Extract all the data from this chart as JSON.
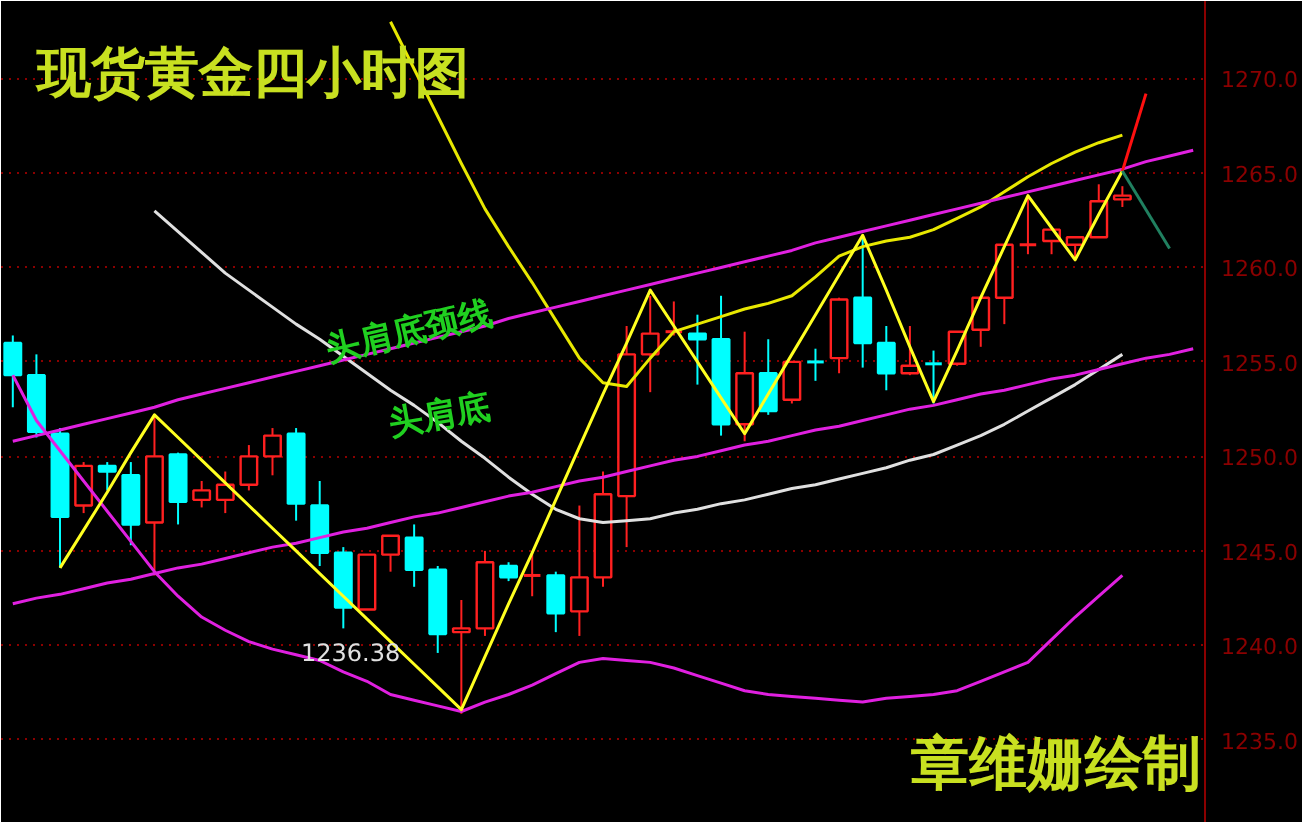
{
  "chart_data": {
    "type": "candlestick",
    "title": "现货黄金四小时图",
    "categories": [
      null,
      null,
      null,
      null,
      null,
      null,
      null,
      null,
      null,
      null,
      null,
      null,
      null,
      null,
      null,
      null,
      null,
      null,
      null,
      null,
      null,
      null,
      null,
      null,
      null,
      null,
      null,
      null,
      null,
      null,
      null,
      null,
      null,
      null,
      null,
      null,
      null,
      null,
      null,
      null,
      null,
      null,
      null,
      null,
      null,
      null,
      null,
      null,
      null,
      null,
      null
    ],
    "ohlc": [
      [
        1256.0,
        1256.4,
        1252.6,
        1254.3
      ],
      [
        1254.3,
        1255.4,
        1251.0,
        1251.3
      ],
      [
        1251.2,
        1251.5,
        1244.1,
        1246.8
      ],
      [
        1247.4,
        1249.7,
        1247.0,
        1249.5
      ],
      [
        1249.5,
        1249.7,
        1248.2,
        1249.2
      ],
      [
        1249.0,
        1249.7,
        1245.3,
        1246.4
      ],
      [
        1246.5,
        1252.2,
        1243.7,
        1250.0
      ],
      [
        1250.1,
        1250.2,
        1246.4,
        1247.6
      ],
      [
        1247.7,
        1248.7,
        1247.3,
        1248.2
      ],
      [
        1247.7,
        1249.2,
        1247.0,
        1248.5
      ],
      [
        1248.5,
        1250.6,
        1248.2,
        1250.0
      ],
      [
        1250.0,
        1251.5,
        1249.0,
        1251.1
      ],
      [
        1251.2,
        1251.5,
        1246.6,
        1247.5
      ],
      [
        1247.4,
        1248.7,
        1244.2,
        1244.9
      ],
      [
        1244.9,
        1245.2,
        1240.9,
        1242.0
      ],
      [
        1241.9,
        1244.8,
        1241.9,
        1244.8
      ],
      [
        1244.8,
        1245.8,
        1243.9,
        1245.8
      ],
      [
        1245.7,
        1246.4,
        1243.1,
        1244.0
      ],
      [
        1244.0,
        1244.2,
        1239.6,
        1240.6
      ],
      [
        1240.7,
        1242.4,
        1236.38,
        1240.9
      ],
      [
        1240.9,
        1245.0,
        1240.5,
        1244.4
      ],
      [
        1244.2,
        1244.4,
        1243.4,
        1243.6
      ],
      [
        1243.7,
        1244.9,
        1242.6,
        1243.8
      ],
      [
        1243.7,
        1243.9,
        1240.7,
        1241.7
      ],
      [
        1241.8,
        1247.4,
        1240.5,
        1243.6
      ],
      [
        1243.6,
        1249.2,
        1243.1,
        1248.0
      ],
      [
        1247.9,
        1256.9,
        1245.2,
        1255.4
      ],
      [
        1255.4,
        1258.5,
        1253.4,
        1256.5
      ],
      [
        1256.6,
        1258.2,
        1256.4,
        1256.7
      ],
      [
        1256.5,
        1257.5,
        1253.8,
        1256.2
      ],
      [
        1256.2,
        1258.5,
        1251.1,
        1251.7
      ],
      [
        1251.7,
        1256.6,
        1250.8,
        1254.4
      ],
      [
        1254.4,
        1256.2,
        1252.2,
        1252.4
      ],
      [
        1253.0,
        1255.0,
        1252.8,
        1255.0
      ],
      [
        1255.0,
        1255.7,
        1254.0,
        1254.9
      ],
      [
        1255.2,
        1258.4,
        1254.4,
        1258.3
      ],
      [
        1258.4,
        1261.7,
        1254.7,
        1256.0
      ],
      [
        1256.0,
        1256.9,
        1253.5,
        1254.4
      ],
      [
        1254.4,
        1256.9,
        1254.3,
        1254.8
      ],
      [
        1254.9,
        1255.6,
        1252.8,
        1254.8
      ],
      [
        1254.9,
        1256.6,
        1254.8,
        1256.6
      ],
      [
        1256.7,
        1258.4,
        1255.8,
        1258.4
      ],
      [
        1258.4,
        1261.2,
        1257.0,
        1261.2
      ],
      [
        1261.2,
        1263.8,
        1260.7,
        1261.3
      ],
      [
        1261.4,
        1262.0,
        1260.7,
        1262.0
      ],
      [
        1261.2,
        1261.6,
        1260.4,
        1261.6
      ],
      [
        1261.6,
        1264.4,
        1261.6,
        1263.5
      ],
      [
        1263.6,
        1264.3,
        1263.2,
        1263.8
      ],
      null,
      null,
      null
    ],
    "colors": [
      "#00ffff",
      "#00ffff",
      "#00ffff",
      "#ff2020",
      "#00ffff",
      "#00ffff",
      "#ff2020",
      "#00ffff",
      "#ff2020",
      "#ff2020",
      "#ff2020",
      "#ff2020",
      "#00ffff",
      "#00ffff",
      "#00ffff",
      "#ff2020",
      "#ff2020",
      "#00ffff",
      "#00ffff",
      "#ff2020",
      "#ff2020",
      "#00ffff",
      "#ff2020",
      "#00ffff",
      "#ff2020",
      "#ff2020",
      "#ff2020",
      "#ff2020",
      "#ff2020",
      "#00ffff",
      "#00ffff",
      "#ff2020",
      "#00ffff",
      "#ff2020",
      "#00ffff",
      "#ff2020",
      "#00ffff",
      "#00ffff",
      "#ff2020",
      "#00ffff",
      "#ff2020",
      "#ff2020",
      "#ff2020",
      "#ff2020",
      "#ff2020",
      "#ff2020",
      "#ff2020",
      "#ff2020",
      null,
      null,
      null
    ],
    "series": [
      {
        "type": "line",
        "color": "#e8e800",
        "values": [
          null,
          null,
          null,
          null,
          null,
          null,
          null,
          null,
          null,
          null,
          null,
          null,
          null,
          null,
          null,
          null,
          1273.0,
          1270.5,
          1268.0,
          1265.5,
          1263.1,
          1261.1,
          1259.2,
          1257.2,
          1255.2,
          1253.9,
          1253.7,
          1255.2,
          1256.6,
          1257.0,
          1257.4,
          1257.8,
          1258.1,
          1258.5,
          1259.5,
          1260.6,
          1261.1,
          1261.4,
          1261.6,
          1262.0,
          1262.6,
          1263.2,
          1264.0,
          1264.8,
          1265.5,
          1266.1,
          1266.6,
          1267.0,
          null,
          null,
          null
        ]
      },
      {
        "type": "line",
        "color": "#e0e0e0",
        "values": [
          null,
          null,
          null,
          null,
          null,
          null,
          1263.0,
          1261.9,
          1260.8,
          1259.7,
          1258.8,
          1257.9,
          1257.0,
          1256.2,
          1255.3,
          1254.4,
          1253.5,
          1252.7,
          1251.8,
          1250.8,
          1249.9,
          1248.9,
          1248.0,
          1247.2,
          1246.7,
          1246.5,
          1246.6,
          1246.7,
          1247.0,
          1247.2,
          1247.5,
          1247.7,
          1248.0,
          1248.3,
          1248.5,
          1248.8,
          1249.1,
          1249.4,
          1249.8,
          1250.1,
          1250.6,
          1251.1,
          1251.7,
          1252.4,
          1253.1,
          1253.8,
          1254.6,
          1255.4,
          null,
          null,
          null
        ]
      },
      {
        "type": "line",
        "color": "#e020e0",
        "values": [
          1254.3,
          1251.9,
          1250.3,
          1248.7,
          1247.1,
          1245.5,
          1243.9,
          1242.6,
          1241.5,
          1240.8,
          1240.2,
          1239.8,
          1239.5,
          1239.2,
          1238.6,
          1238.1,
          1237.4,
          1237.1,
          1236.8,
          1236.5,
          1237.0,
          1237.4,
          1237.9,
          1238.5,
          1239.1,
          1239.3,
          1239.2,
          1239.1,
          1238.8,
          1238.4,
          1238.0,
          1237.6,
          1237.4,
          1237.3,
          1237.2,
          1237.1,
          1237.0,
          1237.2,
          1237.3,
          1237.4,
          1237.6,
          1238.1,
          1238.6,
          1239.1,
          1240.3,
          1241.5,
          1242.6,
          1243.7,
          null,
          null,
          null
        ]
      },
      {
        "type": "line",
        "color": "#e020e0",
        "values": [
          1250.8,
          1251.1,
          1251.4,
          1251.7,
          1252.0,
          1252.3,
          1252.6,
          1253.0,
          1253.3,
          1253.6,
          1253.9,
          1254.2,
          1254.5,
          1254.8,
          1255.1,
          1255.4,
          1255.7,
          1256.0,
          1256.3,
          1256.6,
          1256.9,
          1257.3,
          1257.6,
          1257.9,
          1258.2,
          1258.5,
          1258.8,
          1259.1,
          1259.4,
          1259.7,
          1260.0,
          1260.3,
          1260.6,
          1260.9,
          1261.3,
          1261.6,
          1261.9,
          1262.2,
          1262.5,
          1262.8,
          1263.1,
          1263.4,
          1263.7,
          1264.0,
          1264.3,
          1264.6,
          1264.9,
          1265.2,
          1265.6,
          1265.9,
          1266.2
        ]
      },
      {
        "type": "line",
        "color": "#e020e0",
        "values": [
          1242.2,
          1242.5,
          1242.7,
          1243.0,
          1243.3,
          1243.5,
          1243.8,
          1244.1,
          1244.3,
          1244.6,
          1244.9,
          1245.2,
          1245.4,
          1245.7,
          1246.0,
          1246.2,
          1246.5,
          1246.8,
          1247.0,
          1247.3,
          1247.6,
          1247.9,
          1248.1,
          1248.4,
          1248.7,
          1248.9,
          1249.2,
          1249.5,
          1249.8,
          1250.0,
          1250.3,
          1250.6,
          1250.8,
          1251.1,
          1251.4,
          1251.6,
          1251.9,
          1252.2,
          1252.5,
          1252.7,
          1253.0,
          1253.3,
          1253.5,
          1253.8,
          1254.1,
          1254.3,
          1254.6,
          1254.9,
          1255.2,
          1255.4,
          1255.7
        ]
      },
      {
        "type": "line",
        "color": "#ffff20",
        "values": [
          null,
          null,
          1244.1,
          1246.1,
          1248.1,
          1250.2,
          1252.2,
          1251.0,
          1249.8,
          1248.6,
          1247.4,
          1246.2,
          1245.0,
          1243.8,
          1242.6,
          1241.4,
          1240.2,
          1239.0,
          1237.8,
          1236.6,
          1239.4,
          1242.2,
          1244.9,
          1247.7,
          1250.5,
          1253.3,
          1256.0,
          1258.8,
          1256.9,
          1255.0,
          1253.1,
          1251.2,
          1253.3,
          1255.4,
          1257.5,
          1259.6,
          1261.7,
          1258.8,
          1255.8,
          1252.9,
          1255.6,
          1258.4,
          1261.1,
          1263.8,
          1262.1,
          1260.4,
          1262.8,
          1265.1,
          null,
          null,
          null
        ]
      },
      {
        "type": "line",
        "color": "#ff1010",
        "values": [
          null,
          null,
          null,
          null,
          null,
          null,
          null,
          null,
          null,
          null,
          null,
          null,
          null,
          null,
          null,
          null,
          null,
          null,
          null,
          null,
          null,
          null,
          null,
          null,
          null,
          null,
          null,
          null,
          null,
          null,
          null,
          null,
          null,
          null,
          null,
          null,
          null,
          null,
          null,
          null,
          null,
          null,
          null,
          null,
          null,
          null,
          null,
          1265.1,
          1269.2,
          null,
          null
        ]
      },
      {
        "type": "line",
        "color": "#208060",
        "values": [
          null,
          null,
          null,
          null,
          null,
          null,
          null,
          null,
          null,
          null,
          null,
          null,
          null,
          null,
          null,
          null,
          null,
          null,
          null,
          null,
          null,
          null,
          null,
          null,
          null,
          null,
          null,
          null,
          null,
          null,
          null,
          null,
          null,
          null,
          null,
          null,
          null,
          null,
          null,
          null,
          null,
          null,
          null,
          null,
          null,
          null,
          null,
          1265.1,
          null,
          1261.0,
          null
        ]
      }
    ],
    "annotations": [
      "头肩底颈线",
      "头肩底",
      "1236.38",
      "章维姗绘制"
    ],
    "ylim": [
      1230.6,
      1274.1
    ],
    "yticks": [
      {
        "value": 1235,
        "label": "1235.0"
      },
      {
        "value": 1240,
        "label": "1240.0"
      },
      {
        "value": 1245,
        "label": "1245.0"
      },
      {
        "value": 1250,
        "label": "1250.0"
      },
      {
        "value": 1255,
        "label": "1255.0"
      },
      {
        "value": 1260,
        "label": "1260.0"
      },
      {
        "value": 1265,
        "label": "1265.0"
      },
      {
        "value": 1270,
        "label": "1270.0"
      }
    ],
    "grid": "y",
    "tick_labels": "y"
  }
}
